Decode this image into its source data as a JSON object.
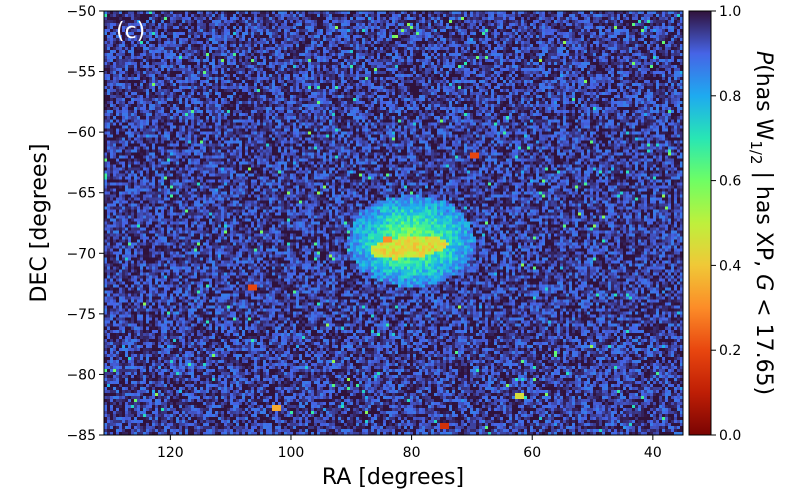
{
  "chart_data": {
    "type": "heatmap",
    "panel_label": "(c)",
    "xlabel": "RA [degrees]",
    "ylabel": "DEC [degrees]",
    "xlim": [
      131,
      35
    ],
    "ylim": [
      -85,
      -50
    ],
    "x_ticks": [
      120,
      100,
      80,
      60,
      40
    ],
    "y_ticks": [
      -50,
      -55,
      -60,
      -65,
      -70,
      -75,
      -80,
      -85
    ],
    "colorbar": {
      "label_prefix": "P",
      "label_main": "(has W",
      "label_sub": "1/2",
      "label_mid": " | has XP, ",
      "label_var": "G",
      "label_suffix": " < 17.65)",
      "range": [
        0.0,
        1.0
      ],
      "ticks": [
        "0.0",
        "0.2",
        "0.4",
        "0.6",
        "0.8",
        "1.0"
      ],
      "colormap": "turbo"
    },
    "background_level": 0.95,
    "bright_star_clusters_dots": [
      {
        "ra": 69.5,
        "dec": -62.0,
        "value": 0.2
      },
      {
        "ra": 106.5,
        "dec": -73.0,
        "value": 0.2
      },
      {
        "ra": 102.5,
        "dec": -82.8,
        "value": 0.35
      },
      {
        "ra": 74.5,
        "dec": -84.5,
        "value": 0.15
      },
      {
        "ra": 62.0,
        "dec": -82.0,
        "value": 0.45
      },
      {
        "ra": 84.0,
        "dec": -69.1,
        "value": 0.3
      }
    ],
    "feature": {
      "name_shown": "",
      "center_ra": 80.0,
      "center_dec": -69.0,
      "outer_value": 0.85,
      "inner_value": 0.55,
      "bar_value": 0.45
    }
  }
}
